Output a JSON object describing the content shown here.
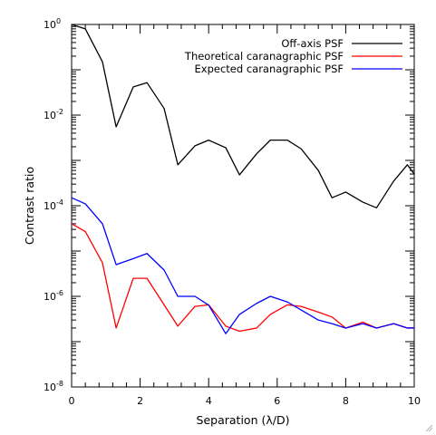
{
  "chart_data": {
    "type": "line",
    "title": "",
    "xlabel": "Separation (λ/D)",
    "ylabel": "Contrast ratio",
    "xlim": [
      0,
      10
    ],
    "ylim": [
      1e-08,
      1
    ],
    "yscale": "log",
    "grid": false,
    "legend_position": "top-right",
    "x_ticks": [
      "0",
      "2",
      "4",
      "6",
      "8",
      "10"
    ],
    "y_ticks": [
      {
        "value": 1,
        "base": "10",
        "exp": "0"
      },
      {
        "value": 0.01,
        "base": "10",
        "exp": "-2"
      },
      {
        "value": 0.0001,
        "base": "10",
        "exp": "-4"
      },
      {
        "value": 1e-06,
        "base": "10",
        "exp": "-6"
      },
      {
        "value": 1e-08,
        "base": "10",
        "exp": "-8"
      }
    ],
    "x": [
      0,
      0.4,
      0.9,
      1.3,
      1.8,
      2.2,
      2.7,
      3.1,
      3.6,
      4.0,
      4.5,
      4.9,
      5.4,
      5.8,
      6.3,
      6.7,
      7.2,
      7.6,
      8.0,
      8.5,
      8.9,
      9.4,
      9.8,
      10.0
    ],
    "series": [
      {
        "name": "Off-axis PSF",
        "color": "#000000",
        "values": [
          1.0,
          0.8,
          0.15,
          0.0055,
          0.042,
          0.052,
          0.014,
          0.0008,
          0.0021,
          0.0028,
          0.0019,
          0.00048,
          0.0014,
          0.0028,
          0.0028,
          0.0018,
          0.0006,
          0.00015,
          0.0002,
          0.00012,
          9e-05,
          0.00035,
          0.0008,
          0.0005
        ]
      },
      {
        "name": "Theoretical caranagraphic PSF",
        "color": "#ff0000",
        "values": [
          4e-05,
          2.7e-05,
          5.5e-06,
          2e-07,
          2.5e-06,
          2.5e-06,
          6.5e-07,
          2.2e-07,
          6e-07,
          6.5e-07,
          2.2e-07,
          1.7e-07,
          2e-07,
          4e-07,
          6.5e-07,
          6e-07,
          4.5e-07,
          3.5e-07,
          2e-07,
          2.7e-07,
          2e-07,
          2.5e-07,
          2e-07,
          2e-07
        ]
      },
      {
        "name": "Expected caranagraphic PSF",
        "color": "#0000ff",
        "values": [
          0.00015,
          0.00011,
          4e-05,
          5e-06,
          6.8e-06,
          8.8e-06,
          3.8e-06,
          1e-06,
          1e-06,
          6.4e-07,
          1.5e-07,
          4e-07,
          7e-07,
          1e-06,
          7.5e-07,
          5e-07,
          3e-07,
          2.5e-07,
          2e-07,
          2.5e-07,
          2e-07,
          2.5e-07,
          2e-07,
          2e-07
        ]
      }
    ]
  }
}
